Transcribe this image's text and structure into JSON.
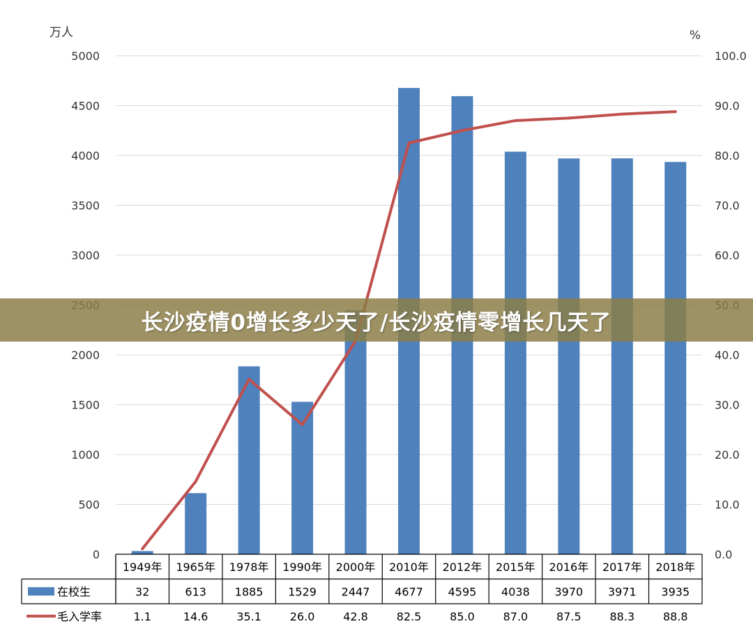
{
  "banner": {
    "title": "长沙疫情0增长多少天了/长沙疫情零增长几天了"
  },
  "chart_data": {
    "type": "bar",
    "categories": [
      "1949年",
      "1965年",
      "1978年",
      "1990年",
      "2000年",
      "2010年",
      "2012年",
      "2015年",
      "2016年",
      "2017年",
      "2018年"
    ],
    "series": [
      {
        "name": "在校生",
        "type": "bar",
        "axis": "left",
        "color": "#4f81bd",
        "values": [
          32,
          613,
          1885,
          1529,
          2447,
          4677,
          4595,
          4038,
          3970,
          3971,
          3935
        ],
        "labels": [
          "32",
          "613",
          "1885",
          "1529",
          "2447",
          "4677",
          "4595",
          "4038",
          "3970",
          "3971",
          "3935"
        ]
      },
      {
        "name": "毛入学率",
        "type": "line",
        "axis": "right",
        "color": "#c0504d",
        "values": [
          1.1,
          14.6,
          35.1,
          26.0,
          42.8,
          82.5,
          85.0,
          87.0,
          87.5,
          88.3,
          88.8
        ],
        "labels": [
          "1.1",
          "14.6",
          "35.1",
          "26.0",
          "42.8",
          "82.5",
          "85.0",
          "87.0",
          "87.5",
          "88.3",
          "88.8"
        ]
      }
    ],
    "y_left": {
      "unit": "万人",
      "ylim": [
        0,
        5000
      ],
      "ticks": [
        "0",
        "500",
        "1000",
        "1500",
        "2000",
        "2500",
        "3000",
        "3500",
        "4000",
        "4500",
        "5000"
      ]
    },
    "y_right": {
      "unit": "%",
      "ylim": [
        0,
        100
      ],
      "ticks": [
        "0.0",
        "10.0",
        "20.0",
        "30.0",
        "40.0",
        "50.0",
        "60.0",
        "70.0",
        "80.0",
        "90.0",
        "100.0"
      ]
    },
    "grid": true,
    "legend": "data-table-below"
  }
}
